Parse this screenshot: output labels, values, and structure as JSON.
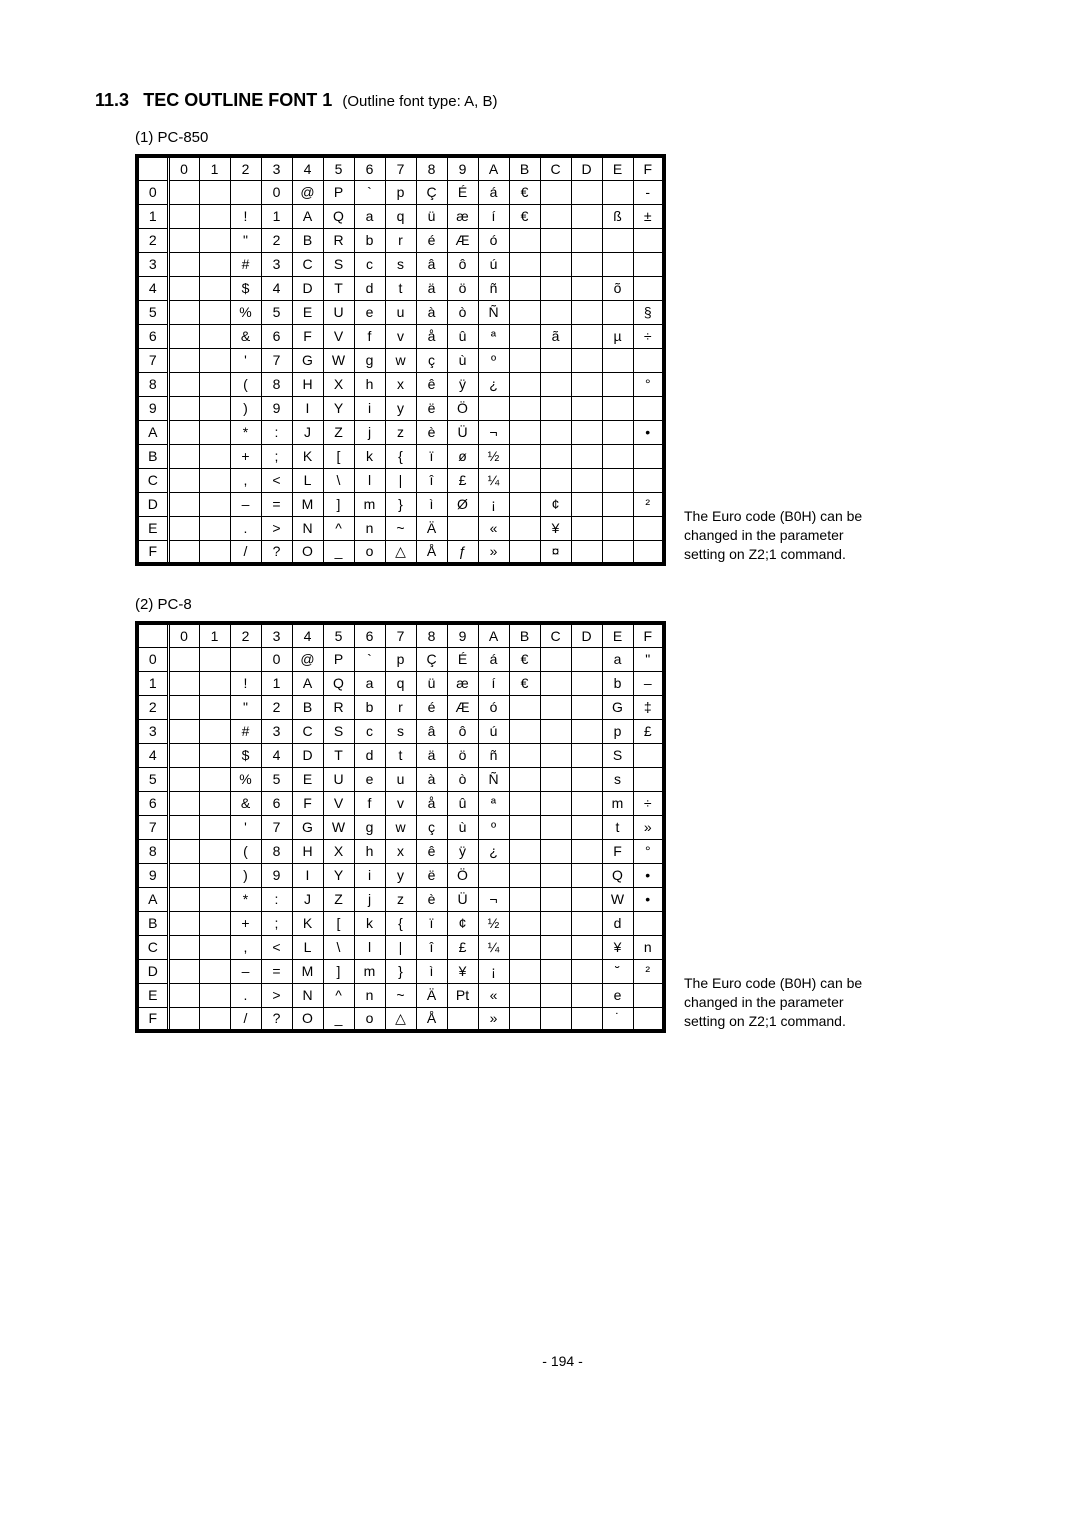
{
  "heading": {
    "section_number": "11.3",
    "title": "TEC OUTLINE FONT 1",
    "subtitle": "(Outline font type: A, B)"
  },
  "tables": [
    {
      "label": "(1)   PC-850",
      "col_headers": [
        "0",
        "1",
        "2",
        "3",
        "4",
        "5",
        "6",
        "7",
        "8",
        "9",
        "A",
        "B",
        "C",
        "D",
        "E",
        "F"
      ],
      "row_headers": [
        "0",
        "1",
        "2",
        "3",
        "4",
        "5",
        "6",
        "7",
        "8",
        "9",
        "A",
        "B",
        "C",
        "D",
        "E",
        "F"
      ],
      "cells": [
        [
          "",
          "",
          "",
          "0",
          "@",
          "P",
          "`",
          "p",
          "Ç",
          "É",
          "á",
          "€",
          "",
          "",
          "",
          "-"
        ],
        [
          "",
          "",
          "!",
          "1",
          "A",
          "Q",
          "a",
          "q",
          "ü",
          "æ",
          "í",
          "€",
          "",
          "",
          "ß",
          "±"
        ],
        [
          "",
          "",
          "\"",
          "2",
          "B",
          "R",
          "b",
          "r",
          "é",
          "Æ",
          "ó",
          "",
          "",
          "",
          "",
          ""
        ],
        [
          "",
          "",
          "#",
          "3",
          "C",
          "S",
          "c",
          "s",
          "â",
          "ô",
          "ú",
          "",
          "",
          "",
          "",
          ""
        ],
        [
          "",
          "",
          "$",
          "4",
          "D",
          "T",
          "d",
          "t",
          "ä",
          "ö",
          "ñ",
          "",
          "",
          "",
          "õ",
          ""
        ],
        [
          "",
          "",
          "%",
          "5",
          "E",
          "U",
          "e",
          "u",
          "à",
          "ò",
          "Ñ",
          "",
          "",
          "",
          "",
          "§"
        ],
        [
          "",
          "",
          "&",
          "6",
          "F",
          "V",
          "f",
          "v",
          "å",
          "û",
          "ª",
          "",
          "ã",
          "",
          "µ",
          "÷"
        ],
        [
          "",
          "",
          "'",
          "7",
          "G",
          "W",
          "g",
          "w",
          "ç",
          "ù",
          "º",
          "",
          "",
          "",
          "",
          ""
        ],
        [
          "",
          "",
          "(",
          "8",
          "H",
          "X",
          "h",
          "x",
          "ê",
          "ÿ",
          "¿",
          "",
          "",
          "",
          "",
          "°"
        ],
        [
          "",
          "",
          ")",
          "9",
          "I",
          "Y",
          "i",
          "y",
          "ë",
          "Ö",
          "",
          "",
          "",
          "",
          "",
          ""
        ],
        [
          "",
          "",
          "*",
          ":",
          "J",
          "Z",
          "j",
          "z",
          "è",
          "Ü",
          "¬",
          "",
          "",
          "",
          "",
          "•"
        ],
        [
          "",
          "",
          "+",
          ";",
          "K",
          "[",
          "k",
          "{",
          "ï",
          "ø",
          "½",
          "",
          "",
          "",
          "",
          ""
        ],
        [
          "",
          "",
          ",",
          "<",
          "L",
          "\\",
          "l",
          "|",
          "î",
          "£",
          "¼",
          "",
          "",
          "",
          "",
          ""
        ],
        [
          "",
          "",
          "–",
          "=",
          "M",
          "]",
          "m",
          "}",
          "ì",
          "Ø",
          "¡",
          "",
          "¢",
          "",
          "",
          "²"
        ],
        [
          "",
          "",
          ".",
          ">",
          "N",
          "^",
          "n",
          "~",
          "Ä",
          "",
          "«",
          "",
          "¥",
          "",
          "",
          ""
        ],
        [
          "",
          "",
          "/",
          "?",
          "O",
          "_",
          "o",
          "△",
          "Å",
          "ƒ",
          "»",
          "",
          "¤",
          "",
          "",
          ""
        ]
      ],
      "note": "The Euro code (B0H) can be changed in the parameter setting on Z2;1 command."
    },
    {
      "label": "(2)   PC-8",
      "col_headers": [
        "0",
        "1",
        "2",
        "3",
        "4",
        "5",
        "6",
        "7",
        "8",
        "9",
        "A",
        "B",
        "C",
        "D",
        "E",
        "F"
      ],
      "row_headers": [
        "0",
        "1",
        "2",
        "3",
        "4",
        "5",
        "6",
        "7",
        "8",
        "9",
        "A",
        "B",
        "C",
        "D",
        "E",
        "F"
      ],
      "cells": [
        [
          "",
          "",
          "",
          "0",
          "@",
          "P",
          "`",
          "p",
          "Ç",
          "É",
          "á",
          "€",
          "",
          "",
          "a",
          "\""
        ],
        [
          "",
          "",
          "!",
          "1",
          "A",
          "Q",
          "a",
          "q",
          "ü",
          "æ",
          "í",
          "€",
          "",
          "",
          "b",
          "–"
        ],
        [
          "",
          "",
          "\"",
          "2",
          "B",
          "R",
          "b",
          "r",
          "é",
          "Æ",
          "ó",
          "",
          "",
          "",
          "G",
          "‡"
        ],
        [
          "",
          "",
          "#",
          "3",
          "C",
          "S",
          "c",
          "s",
          "â",
          "ô",
          "ú",
          "",
          "",
          "",
          "p",
          "£"
        ],
        [
          "",
          "",
          "$",
          "4",
          "D",
          "T",
          "d",
          "t",
          "ä",
          "ö",
          "ñ",
          "",
          "",
          "",
          "S",
          ""
        ],
        [
          "",
          "",
          "%",
          "5",
          "E",
          "U",
          "e",
          "u",
          "à",
          "ò",
          "Ñ",
          "",
          "",
          "",
          "s",
          ""
        ],
        [
          "",
          "",
          "&",
          "6",
          "F",
          "V",
          "f",
          "v",
          "å",
          "û",
          "ª",
          "",
          "",
          "",
          "m",
          "÷"
        ],
        [
          "",
          "",
          "'",
          "7",
          "G",
          "W",
          "g",
          "w",
          "ç",
          "ù",
          "º",
          "",
          "",
          "",
          "t",
          "»"
        ],
        [
          "",
          "",
          "(",
          "8",
          "H",
          "X",
          "h",
          "x",
          "ê",
          "ÿ",
          "¿",
          "",
          "",
          "",
          "F",
          "°"
        ],
        [
          "",
          "",
          ")",
          "9",
          "I",
          "Y",
          "i",
          "y",
          "ë",
          "Ö",
          "",
          "",
          "",
          "",
          "Q",
          "•"
        ],
        [
          "",
          "",
          "*",
          ":",
          "J",
          "Z",
          "j",
          "z",
          "è",
          "Ü",
          "¬",
          "",
          "",
          "",
          "W",
          "•"
        ],
        [
          "",
          "",
          "+",
          ";",
          "K",
          "[",
          "k",
          "{",
          "ï",
          "¢",
          "½",
          "",
          "",
          "",
          "d",
          ""
        ],
        [
          "",
          "",
          ",",
          "<",
          "L",
          "\\",
          "l",
          "|",
          "î",
          "£",
          "¼",
          "",
          "",
          "",
          "¥",
          "n"
        ],
        [
          "",
          "",
          "–",
          "=",
          "M",
          "]",
          "m",
          "}",
          "ì",
          "¥",
          "¡",
          "",
          "",
          "",
          "˘",
          "²"
        ],
        [
          "",
          "",
          ".",
          ">",
          "N",
          "^",
          "n",
          "~",
          "Ä",
          "Pt",
          "«",
          "",
          "",
          "",
          "e",
          ""
        ],
        [
          "",
          "",
          "/",
          "?",
          "O",
          "_",
          "o",
          "△",
          "Å",
          "",
          "»",
          "",
          "",
          "",
          "˙",
          ""
        ]
      ],
      "note": "The Euro code (B0H) can be changed in the parameter setting on Z2;1 command."
    }
  ],
  "page_number": "- 194 -"
}
